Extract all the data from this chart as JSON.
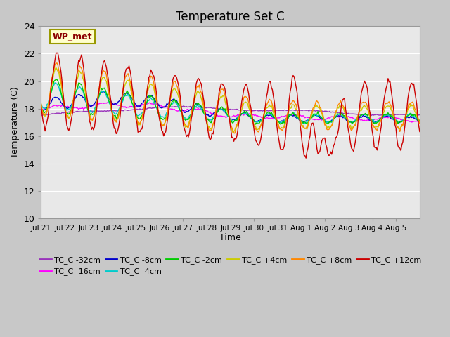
{
  "title": "Temperature Set C",
  "xlabel": "Time",
  "ylabel": "Temperature (C)",
  "ylim": [
    10,
    24
  ],
  "yticks": [
    10,
    12,
    14,
    16,
    18,
    20,
    22,
    24
  ],
  "fig_bg": "#c8c8c8",
  "plot_bg": "#e8e8e8",
  "grid_color": "#ffffff",
  "series": [
    {
      "label": "TC_C -32cm",
      "color": "#9933bb"
    },
    {
      "label": "TC_C -16cm",
      "color": "#ff00ff"
    },
    {
      "label": "TC_C -8cm",
      "color": "#0000cc"
    },
    {
      "label": "TC_C -4cm",
      "color": "#00cccc"
    },
    {
      "label": "TC_C -2cm",
      "color": "#00cc00"
    },
    {
      "label": "TC_C +4cm",
      "color": "#cccc00"
    },
    {
      "label": "TC_C +8cm",
      "color": "#ff8800"
    },
    {
      "label": "TC_C +12cm",
      "color": "#cc0000"
    }
  ],
  "xtick_labels": [
    "Jul 21",
    "Jul 22",
    "Jul 23",
    "Jul 24",
    "Jul 25",
    "Jul 26",
    "Jul 27",
    "Jul 28",
    "Jul 29",
    "Jul 30",
    "Jul 31",
    "Aug 1",
    "Aug 2",
    "Aug 3",
    "Aug 4",
    "Aug 5"
  ],
  "n_days": 16,
  "pts_per_day": 24
}
